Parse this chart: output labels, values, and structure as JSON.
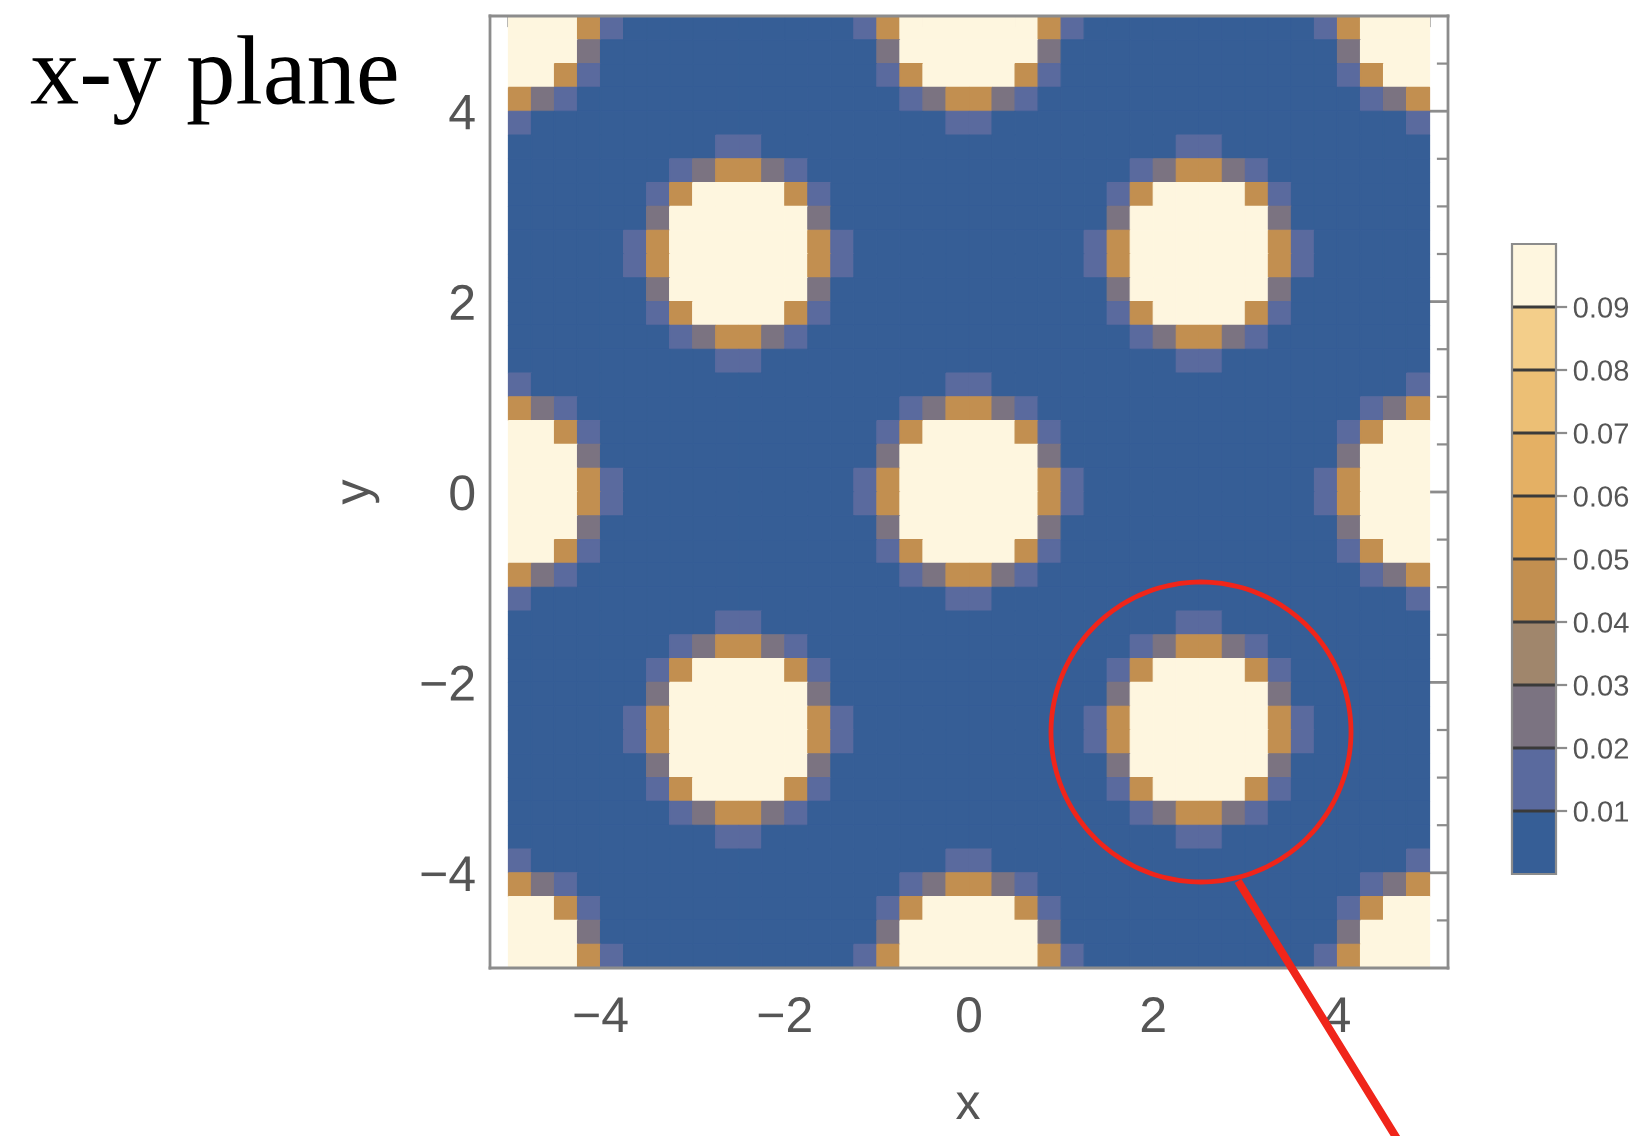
{
  "chart_data": {
    "type": "heatmap",
    "title": "x-y plane",
    "xlabel": "x",
    "ylabel": "y",
    "x": [
      -4.875,
      -4.625,
      -4.375,
      -4.125,
      -3.875,
      -3.625,
      -3.375,
      -3.125,
      -2.875,
      -2.625,
      -2.375,
      -2.125,
      -1.875,
      -1.625,
      -1.375,
      -1.125,
      -0.875,
      -0.625,
      -0.375,
      -0.125,
      0.125,
      0.375,
      0.625,
      0.875,
      1.125,
      1.375,
      1.625,
      1.875,
      2.125,
      2.375,
      2.625,
      2.875,
      3.125,
      3.375,
      3.625,
      3.875,
      4.125,
      4.375,
      4.625,
      4.875
    ],
    "xlim": [
      -5.2,
      5.2
    ],
    "ylim": [
      -5,
      5
    ],
    "xticks": [
      {
        "value": -5,
        "label": null
      },
      {
        "value": -4.5,
        "label": null
      },
      {
        "value": -4,
        "label": "−4"
      },
      {
        "value": -3.5,
        "label": null
      },
      {
        "value": -3,
        "label": null
      },
      {
        "value": -2.5,
        "label": null
      },
      {
        "value": -2,
        "label": "−2"
      },
      {
        "value": -1.5,
        "label": null
      },
      {
        "value": -1,
        "label": null
      },
      {
        "value": -0.5,
        "label": null
      },
      0,
      {
        "value": 0.5,
        "label": null
      },
      {
        "value": 1,
        "label": null
      },
      {
        "value": 1.5,
        "label": null
      },
      2,
      {
        "value": 2.5,
        "label": null
      },
      {
        "value": 3,
        "label": null
      },
      {
        "value": 3.5,
        "label": null
      },
      4,
      {
        "value": 4.5,
        "label": null
      },
      {
        "value": 5,
        "label": null
      }
    ],
    "yticks": [
      {
        "value": -4.5,
        "label": null
      },
      {
        "value": -4,
        "label": "−4"
      },
      {
        "value": -3.5,
        "label": null
      },
      {
        "value": -3,
        "label": null
      },
      {
        "value": -2.5,
        "label": null
      },
      {
        "value": -2,
        "label": "−2"
      },
      {
        "value": -1.5,
        "label": null
      },
      {
        "value": -1,
        "label": null
      },
      {
        "value": -0.5,
        "label": null
      },
      0,
      {
        "value": 0.5,
        "label": null
      },
      {
        "value": 1,
        "label": null
      },
      {
        "value": 1.5,
        "label": null
      },
      2,
      {
        "value": 2.5,
        "label": null
      },
      {
        "value": 3,
        "label": null
      },
      {
        "value": 3.5,
        "label": null
      },
      4,
      {
        "value": 4.5,
        "label": null
      }
    ],
    "clim": [
      0,
      0.1
    ],
    "cticks": [
      0.01,
      0.02,
      0.03,
      0.04,
      0.05,
      0.06,
      0.07,
      0.08,
      0.09
    ],
    "colors": [
      "#365e96",
      "#5a6a9e",
      "#7b7381",
      "#a0866c",
      "#c28f50",
      "#dba254",
      "#e4b064",
      "#ecbf75",
      "#f3ce8a",
      "#fef6df"
    ],
    "cells": [
      [
        0.095,
        0.095,
        0.095,
        0.045,
        0.015,
        0,
        0,
        0,
        0,
        0,
        0,
        0,
        0,
        0,
        0,
        0.015,
        0.045,
        0.095,
        0.095,
        0.095,
        0.095,
        0.095,
        0.095,
        0.045,
        0.015,
        0,
        0,
        0,
        0,
        0,
        0,
        0,
        0,
        0,
        0,
        0.015,
        0.045,
        0.095,
        0.095,
        0.095
      ],
      [
        0.095,
        0.095,
        0.095,
        0.025,
        0,
        0,
        0,
        0,
        0,
        0,
        0,
        0,
        0,
        0,
        0,
        0,
        0.025,
        0.095,
        0.095,
        0.095,
        0.095,
        0.095,
        0.095,
        0.025,
        0,
        0,
        0,
        0,
        0,
        0,
        0,
        0,
        0,
        0,
        0,
        0,
        0.025,
        0.095,
        0.095,
        0.095
      ],
      [
        0.095,
        0.095,
        0.045,
        0.015,
        0,
        0,
        0,
        0,
        0,
        0,
        0,
        0,
        0,
        0,
        0,
        0,
        0.015,
        0.045,
        0.095,
        0.095,
        0.095,
        0.095,
        0.045,
        0.015,
        0,
        0,
        0,
        0,
        0,
        0,
        0,
        0,
        0,
        0,
        0,
        0,
        0.015,
        0.045,
        0.095,
        0.095
      ],
      [
        0.045,
        0.025,
        0.015,
        0,
        0,
        0,
        0,
        0,
        0,
        0,
        0,
        0,
        0,
        0,
        0,
        0,
        0,
        0.015,
        0.025,
        0.045,
        0.045,
        0.025,
        0.015,
        0,
        0,
        0,
        0,
        0,
        0,
        0,
        0,
        0,
        0,
        0,
        0,
        0,
        0,
        0.015,
        0.025,
        0.045
      ],
      [
        0.015,
        0,
        0,
        0,
        0,
        0,
        0,
        0,
        0,
        0,
        0,
        0,
        0,
        0,
        0,
        0,
        0,
        0,
        0,
        0.015,
        0.015,
        0,
        0,
        0,
        0,
        0,
        0,
        0,
        0,
        0,
        0,
        0,
        0,
        0,
        0,
        0,
        0,
        0,
        0,
        0.015
      ],
      [
        0,
        0,
        0,
        0,
        0,
        0,
        0,
        0,
        0,
        0.015,
        0.015,
        0,
        0,
        0,
        0,
        0,
        0,
        0,
        0,
        0,
        0,
        0,
        0,
        0,
        0,
        0,
        0,
        0,
        0,
        0.015,
        0.015,
        0,
        0,
        0,
        0,
        0,
        0,
        0,
        0,
        0
      ],
      [
        0,
        0,
        0,
        0,
        0,
        0,
        0,
        0.015,
        0.025,
        0.045,
        0.045,
        0.025,
        0.015,
        0,
        0,
        0,
        0,
        0,
        0,
        0,
        0,
        0,
        0,
        0,
        0,
        0,
        0,
        0.015,
        0.025,
        0.045,
        0.045,
        0.025,
        0.015,
        0,
        0,
        0,
        0,
        0,
        0,
        0
      ],
      [
        0,
        0,
        0,
        0,
        0,
        0,
        0.015,
        0.045,
        0.095,
        0.095,
        0.095,
        0.095,
        0.045,
        0.015,
        0,
        0,
        0,
        0,
        0,
        0,
        0,
        0,
        0,
        0,
        0,
        0,
        0.015,
        0.045,
        0.095,
        0.095,
        0.095,
        0.095,
        0.045,
        0.015,
        0,
        0,
        0,
        0,
        0,
        0
      ],
      [
        0,
        0,
        0,
        0,
        0,
        0,
        0.025,
        0.095,
        0.095,
        0.095,
        0.095,
        0.095,
        0.095,
        0.025,
        0,
        0,
        0,
        0,
        0,
        0,
        0,
        0,
        0,
        0,
        0,
        0,
        0.025,
        0.095,
        0.095,
        0.095,
        0.095,
        0.095,
        0.095,
        0.025,
        0,
        0,
        0,
        0,
        0,
        0
      ],
      [
        0,
        0,
        0,
        0,
        0,
        0.015,
        0.045,
        0.095,
        0.095,
        0.095,
        0.095,
        0.095,
        0.095,
        0.045,
        0.015,
        0,
        0,
        0,
        0,
        0,
        0,
        0,
        0,
        0,
        0,
        0.015,
        0.045,
        0.095,
        0.095,
        0.095,
        0.095,
        0.095,
        0.095,
        0.045,
        0.015,
        0,
        0,
        0,
        0,
        0
      ],
      [
        0,
        0,
        0,
        0,
        0,
        0.015,
        0.045,
        0.095,
        0.095,
        0.095,
        0.095,
        0.095,
        0.095,
        0.045,
        0.015,
        0,
        0,
        0,
        0,
        0,
        0,
        0,
        0,
        0,
        0,
        0.015,
        0.045,
        0.095,
        0.095,
        0.095,
        0.095,
        0.095,
        0.095,
        0.045,
        0.015,
        0,
        0,
        0,
        0,
        0
      ],
      [
        0,
        0,
        0,
        0,
        0,
        0,
        0.025,
        0.095,
        0.095,
        0.095,
        0.095,
        0.095,
        0.095,
        0.025,
        0,
        0,
        0,
        0,
        0,
        0,
        0,
        0,
        0,
        0,
        0,
        0,
        0.025,
        0.095,
        0.095,
        0.095,
        0.095,
        0.095,
        0.095,
        0.025,
        0,
        0,
        0,
        0,
        0,
        0
      ],
      [
        0,
        0,
        0,
        0,
        0,
        0,
        0.015,
        0.045,
        0.095,
        0.095,
        0.095,
        0.095,
        0.045,
        0.015,
        0,
        0,
        0,
        0,
        0,
        0,
        0,
        0,
        0,
        0,
        0,
        0,
        0.015,
        0.045,
        0.095,
        0.095,
        0.095,
        0.095,
        0.045,
        0.015,
        0,
        0,
        0,
        0,
        0,
        0
      ],
      [
        0,
        0,
        0,
        0,
        0,
        0,
        0,
        0.015,
        0.025,
        0.045,
        0.045,
        0.025,
        0.015,
        0,
        0,
        0,
        0,
        0,
        0,
        0,
        0,
        0,
        0,
        0,
        0,
        0,
        0,
        0.015,
        0.025,
        0.045,
        0.045,
        0.025,
        0.015,
        0,
        0,
        0,
        0,
        0,
        0,
        0
      ],
      [
        0,
        0,
        0,
        0,
        0,
        0,
        0,
        0,
        0,
        0.015,
        0.015,
        0,
        0,
        0,
        0,
        0,
        0,
        0,
        0,
        0,
        0,
        0,
        0,
        0,
        0,
        0,
        0,
        0,
        0,
        0.015,
        0.015,
        0,
        0,
        0,
        0,
        0,
        0,
        0,
        0,
        0
      ],
      [
        0.015,
        0,
        0,
        0,
        0,
        0,
        0,
        0,
        0,
        0,
        0,
        0,
        0,
        0,
        0,
        0,
        0,
        0,
        0,
        0.015,
        0.015,
        0,
        0,
        0,
        0,
        0,
        0,
        0,
        0,
        0,
        0,
        0,
        0,
        0,
        0,
        0,
        0,
        0,
        0,
        0.015
      ],
      [
        0.045,
        0.025,
        0.015,
        0,
        0,
        0,
        0,
        0,
        0,
        0,
        0,
        0,
        0,
        0,
        0,
        0,
        0,
        0.015,
        0.025,
        0.045,
        0.045,
        0.025,
        0.015,
        0,
        0,
        0,
        0,
        0,
        0,
        0,
        0,
        0,
        0,
        0,
        0,
        0,
        0,
        0.015,
        0.025,
        0.045
      ],
      [
        0.095,
        0.095,
        0.045,
        0.015,
        0,
        0,
        0,
        0,
        0,
        0,
        0,
        0,
        0,
        0,
        0,
        0,
        0.015,
        0.045,
        0.095,
        0.095,
        0.095,
        0.095,
        0.045,
        0.015,
        0,
        0,
        0,
        0,
        0,
        0,
        0,
        0,
        0,
        0,
        0,
        0,
        0.015,
        0.045,
        0.095,
        0.095
      ],
      [
        0.095,
        0.095,
        0.095,
        0.025,
        0,
        0,
        0,
        0,
        0,
        0,
        0,
        0,
        0,
        0,
        0,
        0,
        0.025,
        0.095,
        0.095,
        0.095,
        0.095,
        0.095,
        0.095,
        0.025,
        0,
        0,
        0,
        0,
        0,
        0,
        0,
        0,
        0,
        0,
        0,
        0,
        0.025,
        0.095,
        0.095,
        0.095
      ],
      [
        0.095,
        0.095,
        0.095,
        0.045,
        0.015,
        0,
        0,
        0,
        0,
        0,
        0,
        0,
        0,
        0,
        0,
        0.015,
        0.045,
        0.095,
        0.095,
        0.095,
        0.095,
        0.095,
        0.095,
        0.045,
        0.015,
        0,
        0,
        0,
        0,
        0,
        0,
        0,
        0,
        0,
        0,
        0.015,
        0.045,
        0.095,
        0.095,
        0.095
      ],
      [
        0.095,
        0.095,
        0.095,
        0.045,
        0.015,
        0,
        0,
        0,
        0,
        0,
        0,
        0,
        0,
        0,
        0,
        0.015,
        0.045,
        0.095,
        0.095,
        0.095,
        0.095,
        0.095,
        0.095,
        0.045,
        0.015,
        0,
        0,
        0,
        0,
        0,
        0,
        0,
        0,
        0,
        0,
        0.015,
        0.045,
        0.095,
        0.095,
        0.095
      ],
      [
        0.095,
        0.095,
        0.095,
        0.025,
        0,
        0,
        0,
        0,
        0,
        0,
        0,
        0,
        0,
        0,
        0,
        0,
        0.025,
        0.095,
        0.095,
        0.095,
        0.095,
        0.095,
        0.095,
        0.025,
        0,
        0,
        0,
        0,
        0,
        0,
        0,
        0,
        0,
        0,
        0,
        0,
        0.025,
        0.095,
        0.095,
        0.095
      ],
      [
        0.095,
        0.095,
        0.045,
        0.015,
        0,
        0,
        0,
        0,
        0,
        0,
        0,
        0,
        0,
        0,
        0,
        0,
        0.015,
        0.045,
        0.095,
        0.095,
        0.095,
        0.095,
        0.045,
        0.015,
        0,
        0,
        0,
        0,
        0,
        0,
        0,
        0,
        0,
        0,
        0,
        0,
        0.015,
        0.045,
        0.095,
        0.095
      ],
      [
        0.045,
        0.025,
        0.015,
        0,
        0,
        0,
        0,
        0,
        0,
        0,
        0,
        0,
        0,
        0,
        0,
        0,
        0,
        0.015,
        0.025,
        0.045,
        0.045,
        0.025,
        0.015,
        0,
        0,
        0,
        0,
        0,
        0,
        0,
        0,
        0,
        0,
        0,
        0,
        0,
        0,
        0.015,
        0.025,
        0.045
      ],
      [
        0.015,
        0,
        0,
        0,
        0,
        0,
        0,
        0,
        0,
        0,
        0,
        0,
        0,
        0,
        0,
        0,
        0,
        0,
        0,
        0.015,
        0.015,
        0,
        0,
        0,
        0,
        0,
        0,
        0,
        0,
        0,
        0,
        0,
        0,
        0,
        0,
        0,
        0,
        0,
        0,
        0.015
      ],
      [
        0,
        0,
        0,
        0,
        0,
        0,
        0,
        0,
        0,
        0.015,
        0.015,
        0,
        0,
        0,
        0,
        0,
        0,
        0,
        0,
        0,
        0,
        0,
        0,
        0,
        0,
        0,
        0,
        0,
        0,
        0.015,
        0.015,
        0,
        0,
        0,
        0,
        0,
        0,
        0,
        0,
        0
      ],
      [
        0,
        0,
        0,
        0,
        0,
        0,
        0,
        0.015,
        0.025,
        0.045,
        0.045,
        0.025,
        0.015,
        0,
        0,
        0,
        0,
        0,
        0,
        0,
        0,
        0,
        0,
        0,
        0,
        0,
        0,
        0.015,
        0.025,
        0.045,
        0.045,
        0.025,
        0.015,
        0,
        0,
        0,
        0,
        0,
        0,
        0
      ],
      [
        0,
        0,
        0,
        0,
        0,
        0,
        0.015,
        0.045,
        0.095,
        0.095,
        0.095,
        0.095,
        0.045,
        0.015,
        0,
        0,
        0,
        0,
        0,
        0,
        0,
        0,
        0,
        0,
        0,
        0,
        0.015,
        0.045,
        0.095,
        0.095,
        0.095,
        0.095,
        0.045,
        0.015,
        0,
        0,
        0,
        0,
        0,
        0
      ],
      [
        0,
        0,
        0,
        0,
        0,
        0,
        0.025,
        0.095,
        0.095,
        0.095,
        0.095,
        0.095,
        0.095,
        0.025,
        0,
        0,
        0,
        0,
        0,
        0,
        0,
        0,
        0,
        0,
        0,
        0,
        0.025,
        0.095,
        0.095,
        0.095,
        0.095,
        0.095,
        0.095,
        0.025,
        0,
        0,
        0,
        0,
        0,
        0
      ],
      [
        0,
        0,
        0,
        0,
        0,
        0.015,
        0.045,
        0.095,
        0.095,
        0.095,
        0.095,
        0.095,
        0.095,
        0.045,
        0.015,
        0,
        0,
        0,
        0,
        0,
        0,
        0,
        0,
        0,
        0,
        0.015,
        0.045,
        0.095,
        0.095,
        0.095,
        0.095,
        0.095,
        0.095,
        0.045,
        0.015,
        0,
        0,
        0,
        0,
        0
      ],
      [
        0,
        0,
        0,
        0,
        0,
        0.015,
        0.045,
        0.095,
        0.095,
        0.095,
        0.095,
        0.095,
        0.095,
        0.045,
        0.015,
        0,
        0,
        0,
        0,
        0,
        0,
        0,
        0,
        0,
        0,
        0.015,
        0.045,
        0.095,
        0.095,
        0.095,
        0.095,
        0.095,
        0.095,
        0.045,
        0.015,
        0,
        0,
        0,
        0,
        0
      ],
      [
        0,
        0,
        0,
        0,
        0,
        0,
        0.025,
        0.095,
        0.095,
        0.095,
        0.095,
        0.095,
        0.095,
        0.025,
        0,
        0,
        0,
        0,
        0,
        0,
        0,
        0,
        0,
        0,
        0,
        0,
        0.025,
        0.095,
        0.095,
        0.095,
        0.095,
        0.095,
        0.095,
        0.025,
        0,
        0,
        0,
        0,
        0,
        0
      ],
      [
        0,
        0,
        0,
        0,
        0,
        0,
        0.015,
        0.045,
        0.095,
        0.095,
        0.095,
        0.095,
        0.045,
        0.015,
        0,
        0,
        0,
        0,
        0,
        0,
        0,
        0,
        0,
        0,
        0,
        0,
        0.015,
        0.045,
        0.095,
        0.095,
        0.095,
        0.095,
        0.045,
        0.015,
        0,
        0,
        0,
        0,
        0,
        0
      ],
      [
        0,
        0,
        0,
        0,
        0,
        0,
        0,
        0.015,
        0.025,
        0.045,
        0.045,
        0.025,
        0.015,
        0,
        0,
        0,
        0,
        0,
        0,
        0,
        0,
        0,
        0,
        0,
        0,
        0,
        0,
        0.015,
        0.025,
        0.045,
        0.045,
        0.025,
        0.015,
        0,
        0,
        0,
        0,
        0,
        0,
        0
      ],
      [
        0,
        0,
        0,
        0,
        0,
        0,
        0,
        0,
        0,
        0.015,
        0.015,
        0,
        0,
        0,
        0,
        0,
        0,
        0,
        0,
        0,
        0,
        0,
        0,
        0,
        0,
        0,
        0,
        0,
        0,
        0.015,
        0.015,
        0,
        0,
        0,
        0,
        0,
        0,
        0,
        0,
        0
      ],
      [
        0.015,
        0,
        0,
        0,
        0,
        0,
        0,
        0,
        0,
        0,
        0,
        0,
        0,
        0,
        0,
        0,
        0,
        0,
        0,
        0.015,
        0.015,
        0,
        0,
        0,
        0,
        0,
        0,
        0,
        0,
        0,
        0,
        0,
        0,
        0,
        0,
        0,
        0,
        0,
        0,
        0.015
      ],
      [
        0.045,
        0.025,
        0.015,
        0,
        0,
        0,
        0,
        0,
        0,
        0,
        0,
        0,
        0,
        0,
        0,
        0,
        0,
        0.015,
        0.025,
        0.045,
        0.045,
        0.025,
        0.015,
        0,
        0,
        0,
        0,
        0,
        0,
        0,
        0,
        0,
        0,
        0,
        0,
        0,
        0,
        0.015,
        0.025,
        0.045
      ],
      [
        0.095,
        0.095,
        0.045,
        0.015,
        0,
        0,
        0,
        0,
        0,
        0,
        0,
        0,
        0,
        0,
        0,
        0,
        0.015,
        0.045,
        0.095,
        0.095,
        0.095,
        0.095,
        0.045,
        0.015,
        0,
        0,
        0,
        0,
        0,
        0,
        0,
        0,
        0,
        0,
        0,
        0,
        0.015,
        0.045,
        0.095,
        0.095
      ],
      [
        0.095,
        0.095,
        0.095,
        0.025,
        0,
        0,
        0,
        0,
        0,
        0,
        0,
        0,
        0,
        0,
        0,
        0,
        0.025,
        0.095,
        0.095,
        0.095,
        0.095,
        0.095,
        0.095,
        0.025,
        0,
        0,
        0,
        0,
        0,
        0,
        0,
        0,
        0,
        0,
        0,
        0,
        0.025,
        0.095,
        0.095,
        0.095
      ],
      [
        0.095,
        0.095,
        0.095,
        0.045,
        0.015,
        0,
        0,
        0,
        0,
        0,
        0,
        0,
        0,
        0,
        0,
        0.015,
        0.045,
        0.095,
        0.095,
        0.095,
        0.095,
        0.095,
        0.095,
        0.045,
        0.015,
        0,
        0,
        0,
        0,
        0,
        0,
        0,
        0,
        0,
        0,
        0.015,
        0.045,
        0.095,
        0.095,
        0.095
      ]
    ]
  }
}
